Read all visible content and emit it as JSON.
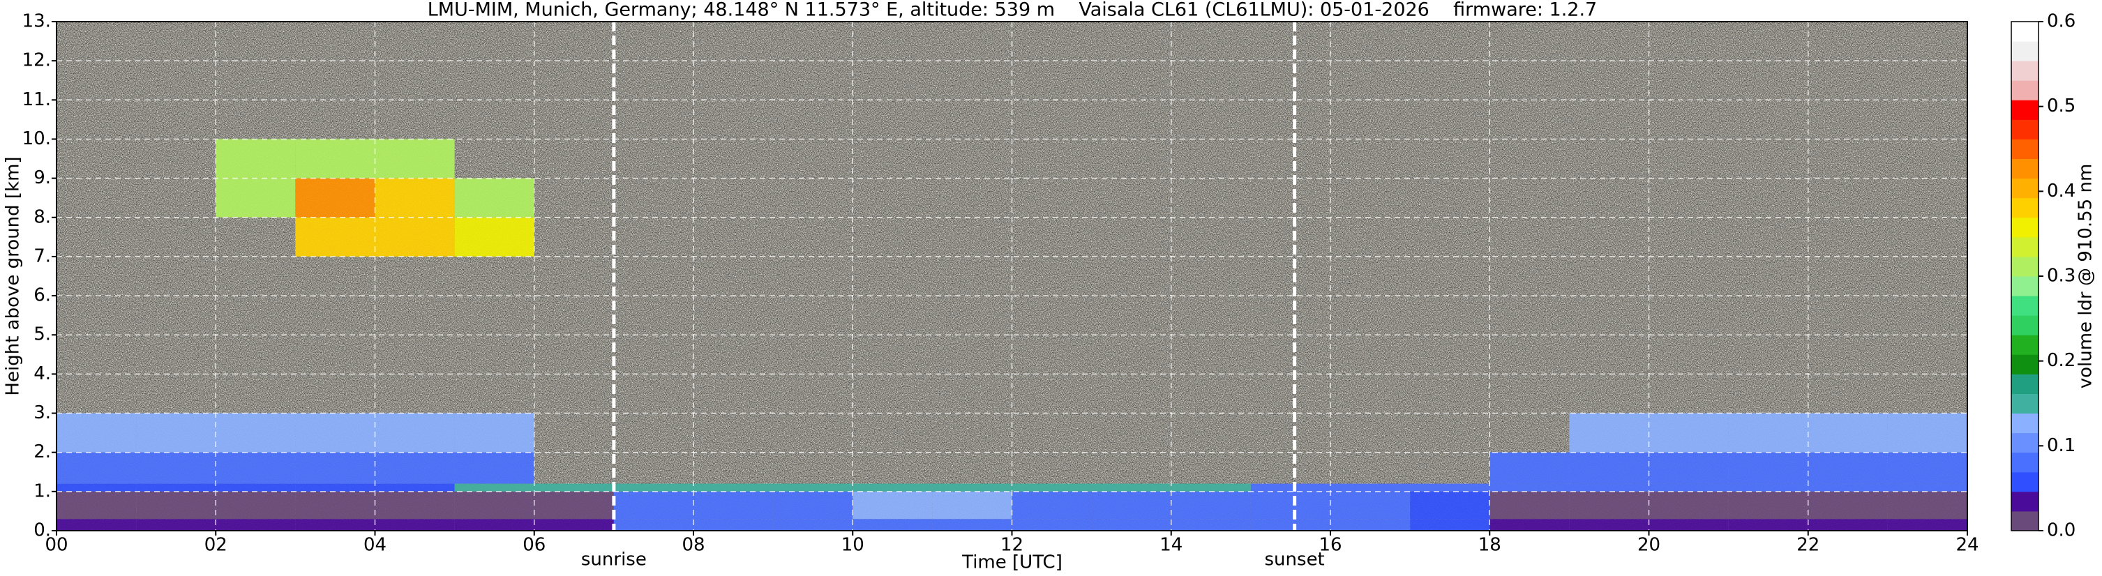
{
  "chart_data": {
    "type": "heatmap",
    "title": "LMU-MIM, Munich, Germany; 48.148° N 11.573° E, altitude: 539 m    Vaisala CL61 (CL61LMU): 05-01-2026    firmware: 1.2.7",
    "x_label": "Time [UTC]",
    "y_label": "Height above ground [km]",
    "colorbar_label": "volume ldr @ 910.55 nm",
    "xlim": [
      0,
      24
    ],
    "ylim": [
      0,
      13
    ],
    "clim": [
      0,
      0.6
    ],
    "xticks": [
      {
        "value": 0,
        "label": "00"
      },
      {
        "value": 2,
        "label": "02"
      },
      {
        "value": 4,
        "label": "04"
      },
      {
        "value": 6,
        "label": "06"
      },
      {
        "value": 8,
        "label": "08"
      },
      10,
      12,
      14,
      16,
      18,
      20,
      22,
      24
    ],
    "yticks": [
      {
        "value": 0,
        "label": "0."
      },
      {
        "value": 1,
        "label": "1."
      },
      {
        "value": 2,
        "label": "2."
      },
      {
        "value": 3,
        "label": "3."
      },
      {
        "value": 4,
        "label": "4."
      },
      {
        "value": 5,
        "label": "5."
      },
      {
        "value": 6,
        "label": "6."
      },
      {
        "value": 7,
        "label": "7."
      },
      {
        "value": 8,
        "label": "8."
      },
      {
        "value": 9,
        "label": "9."
      },
      {
        "value": 10,
        "label": "10."
      },
      {
        "value": 11,
        "label": "11."
      },
      {
        "value": 12,
        "label": "12."
      },
      {
        "value": 13,
        "label": "13."
      }
    ],
    "cticks": [
      {
        "value": 0,
        "label": "0.0"
      },
      0.1,
      0.2,
      0.3,
      0.4,
      0.5,
      0.6
    ],
    "grid": true,
    "colors": [
      "#6a4a7a",
      "#4a0a9a",
      "#3050ff",
      "#4a70ff",
      "#6a90ff",
      "#8ab0ff",
      "#40b0a0",
      "#20a080",
      "#109010",
      "#20b020",
      "#30d060",
      "#40e080",
      "#90f090",
      "#b0f060",
      "#d0f030",
      "#f0f000",
      "#ffd000",
      "#ffb000",
      "#ff9000",
      "#ff6000",
      "#ff3000",
      "#ff0000",
      "#f0b0b0",
      "#f0d0d0",
      "#f0f0f0",
      "#ffffff"
    ],
    "x_bins": [
      0,
      1,
      2,
      3,
      4,
      5,
      6,
      7,
      8,
      9,
      10,
      11,
      12,
      13,
      14,
      15,
      16,
      17,
      18,
      19,
      20,
      21,
      22,
      23,
      24
    ],
    "y_bins": [
      0,
      0.3,
      1,
      1.2,
      2,
      3,
      7,
      8,
      9,
      10,
      13
    ],
    "z": [
      [
        0.03,
        0.03,
        0.03,
        0.03,
        0.03,
        0.03,
        0.03,
        0.07,
        0.07,
        0.07,
        0.07,
        0.07,
        0.07,
        0.07,
        0.07,
        0.07,
        0.07,
        0.05,
        0.03,
        0.03,
        0.03,
        0.03,
        0.03,
        0.03
      ],
      [
        0.01,
        0.01,
        0.01,
        0.01,
        0.01,
        0.01,
        0.01,
        0.08,
        0.08,
        0.08,
        0.12,
        0.12,
        0.08,
        0.08,
        0.08,
        0.08,
        0.08,
        0.06,
        0.01,
        0.01,
        0.01,
        0.01,
        0.01,
        0.01
      ],
      [
        0.06,
        0.06,
        0.06,
        0.06,
        0.06,
        0.15,
        0.15,
        0.15,
        0.15,
        0.15,
        0.15,
        0.15,
        0.15,
        0.15,
        0.15,
        0.08,
        0.08,
        0.07,
        0.07,
        0.07,
        0.07,
        0.07,
        0.07,
        0.07
      ],
      [
        0.08,
        0.08,
        0.08,
        0.08,
        0.08,
        0.08,
        null,
        null,
        null,
        null,
        null,
        null,
        null,
        null,
        null,
        null,
        null,
        null,
        0.08,
        0.08,
        0.08,
        0.08,
        0.08,
        0.08
      ],
      [
        0.12,
        0.12,
        0.12,
        0.12,
        0.12,
        0.12,
        null,
        null,
        null,
        null,
        null,
        null,
        null,
        null,
        null,
        null,
        null,
        null,
        null,
        0.12,
        0.12,
        0.12,
        0.12,
        0.12
      ],
      [
        null,
        null,
        null,
        null,
        null,
        null,
        null,
        null,
        null,
        null,
        null,
        null,
        null,
        null,
        null,
        null,
        null,
        null,
        null,
        null,
        null,
        null,
        null,
        null
      ],
      [
        null,
        null,
        null,
        0.38,
        0.38,
        0.35,
        null,
        null,
        null,
        null,
        null,
        null,
        null,
        null,
        null,
        null,
        null,
        null,
        null,
        null,
        null,
        null,
        null,
        null
      ],
      [
        null,
        null,
        0.3,
        0.42,
        0.38,
        0.3,
        null,
        null,
        null,
        null,
        null,
        null,
        null,
        null,
        null,
        null,
        null,
        null,
        null,
        null,
        null,
        null,
        null,
        null
      ],
      [
        null,
        null,
        0.3,
        0.32,
        0.3,
        null,
        null,
        null,
        null,
        null,
        null,
        null,
        null,
        null,
        null,
        null,
        null,
        null,
        null,
        null,
        null,
        null,
        null,
        null
      ],
      [
        null,
        null,
        null,
        null,
        null,
        null,
        null,
        null,
        null,
        null,
        null,
        null,
        null,
        null,
        null,
        null,
        null,
        null,
        null,
        null,
        null,
        null,
        null,
        null
      ]
    ],
    "markers": [
      {
        "label": "sunrise",
        "x": 7.0
      },
      {
        "label": "sunset",
        "x": 15.55
      }
    ]
  }
}
